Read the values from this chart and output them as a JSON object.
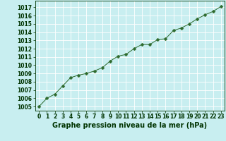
{
  "x": [
    0,
    1,
    2,
    3,
    4,
    5,
    6,
    7,
    8,
    9,
    10,
    11,
    12,
    13,
    14,
    15,
    16,
    17,
    18,
    19,
    20,
    21,
    22,
    23
  ],
  "y": [
    1005.0,
    1006.0,
    1006.5,
    1007.5,
    1008.5,
    1008.8,
    1009.0,
    1009.3,
    1009.7,
    1010.5,
    1011.1,
    1011.3,
    1012.0,
    1012.5,
    1012.5,
    1013.1,
    1013.2,
    1014.2,
    1014.5,
    1015.0,
    1015.6,
    1016.1,
    1016.5,
    1017.1
  ],
  "line_color": "#2d6a2d",
  "marker": "D",
  "marker_size": 2.5,
  "bg_color": "#c8eef0",
  "grid_color": "#ffffff",
  "xlabel": "Graphe pression niveau de la mer (hPa)",
  "xlabel_color": "#003300",
  "xlabel_fontsize": 7,
  "tick_color": "#003300",
  "tick_fontsize": 5.5,
  "ylim": [
    1004.5,
    1017.8
  ],
  "yticks": [
    1005,
    1006,
    1007,
    1008,
    1009,
    1010,
    1011,
    1012,
    1013,
    1014,
    1015,
    1016,
    1017
  ],
  "xlim": [
    -0.5,
    23.5
  ],
  "xticks": [
    0,
    1,
    2,
    3,
    4,
    5,
    6,
    7,
    8,
    9,
    10,
    11,
    12,
    13,
    14,
    15,
    16,
    17,
    18,
    19,
    20,
    21,
    22,
    23
  ]
}
